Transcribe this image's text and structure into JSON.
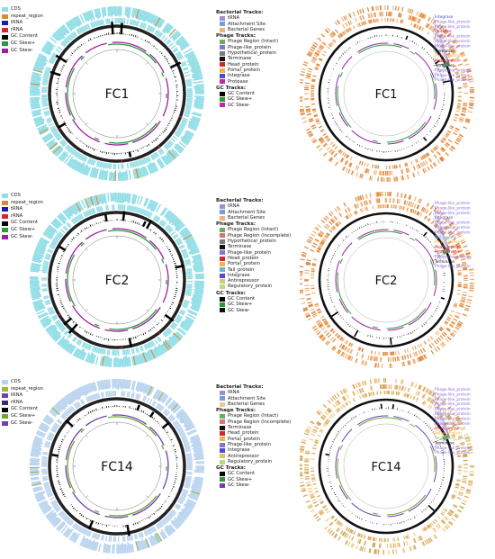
{
  "panels": [
    {
      "id": "FC1",
      "label": "FC1",
      "gc_color": "#2a9b3a",
      "skew_neg": "#9b1fa0",
      "left_legend": [
        {
          "label": "CDS",
          "color": "#8fdde6"
        },
        {
          "label": "repeat_region",
          "color": "#d98a2b"
        },
        {
          "label": "tRNA",
          "color": "#1c1cb5"
        },
        {
          "label": "rRNA",
          "color": "#d9232f"
        },
        {
          "label": "GC Content",
          "color": "#000000"
        },
        {
          "label": "GC Skew+",
          "color": "#2a9b3a"
        },
        {
          "label": "GC Skew-",
          "color": "#9b1fa0"
        }
      ],
      "mid_legend": [
        {
          "header": "Bacterial Tracks:",
          "items": [
            {
              "label": "tRNA",
              "color": "#9c8fd6"
            },
            {
              "label": "Attachment Site",
              "color": "#6fa0d6"
            },
            {
              "label": "Bacterial Genes",
              "color": "#f2b27a"
            }
          ]
        },
        {
          "header": "Phage Tracks:",
          "items": [
            {
              "label": "Phage Region (Intact)",
              "color": "#6aad5f"
            },
            {
              "label": "Phage-like_protein",
              "color": "#8c6fd6"
            },
            {
              "label": "Hypothetical_protein",
              "color": "#7a7a7a"
            },
            {
              "label": "Terminase",
              "color": "#111111"
            },
            {
              "label": "Head_protein",
              "color": "#d9232f"
            },
            {
              "label": "Portal_protein",
              "color": "#e8b84a"
            },
            {
              "label": "Integrase",
              "color": "#4a4ad6"
            },
            {
              "label": "Protease",
              "color": "#c02a9c"
            }
          ]
        },
        {
          "header": "GC Tracks:",
          "items": [
            {
              "label": "GC Content",
              "color": "#000000"
            },
            {
              "label": "GC Skew+",
              "color": "#2a9b3a"
            },
            {
              "label": "GC Skew-",
              "color": "#c02aa8"
            }
          ]
        }
      ],
      "phage_labels": [
        "Integrase",
        "Phage-like_protein",
        "Phage-like_protein",
        "Protease",
        "Phage-like_protein",
        "Phage-like_protein",
        "Phage-like_protein",
        "Terminase",
        "Portal_protein",
        "Head_protein",
        "Terminase",
        "Phage-like_protein",
        "Phage-like_protein",
        "Phage-like_protein"
      ],
      "phage_label_colors": [
        "#4a4ad6",
        "#8c6fd6",
        "#8c6fd6",
        "#c02a9c",
        "#8c6fd6",
        "#8c6fd6",
        "#8c6fd6",
        "#111111",
        "#e8b84a",
        "#d9232f",
        "#111111",
        "#8c6fd6",
        "#8c6fd6",
        "#8c6fd6"
      ]
    },
    {
      "id": "FC2",
      "label": "FC2",
      "gc_color": "#2a9b3a",
      "skew_neg": "#9b1fa0",
      "left_legend": [
        {
          "label": "CDS",
          "color": "#8fdde6"
        },
        {
          "label": "repeat_region",
          "color": "#d98a2b"
        },
        {
          "label": "tRNA",
          "color": "#1c1cb5"
        },
        {
          "label": "rRNA",
          "color": "#d9232f"
        },
        {
          "label": "GC Content",
          "color": "#000000"
        },
        {
          "label": "GC Skew+",
          "color": "#2a9b3a"
        },
        {
          "label": "GC Skew-",
          "color": "#9b1fa0"
        }
      ],
      "mid_legend": [
        {
          "header": "Bacterial Tracks:",
          "items": [
            {
              "label": "tRNA",
              "color": "#9c8fd6"
            },
            {
              "label": "Attachment Site",
              "color": "#6fa0d6"
            },
            {
              "label": "Bacterial Genes",
              "color": "#f2b27a"
            }
          ]
        },
        {
          "header": "Phage Tracks:",
          "items": [
            {
              "label": "Phage Region (Intact)",
              "color": "#6aad5f"
            },
            {
              "label": "Phage Region (Incomplete)",
              "color": "#d9757a"
            },
            {
              "label": "Hypothetical_protein",
              "color": "#7a7a7a"
            },
            {
              "label": "Terminase",
              "color": "#111111"
            },
            {
              "label": "Phage-like_protein",
              "color": "#8c6fd6"
            },
            {
              "label": "Head_protein",
              "color": "#d9232f"
            },
            {
              "label": "Portal_protein",
              "color": "#e8b84a"
            },
            {
              "label": "Tail_protein",
              "color": "#6fb0d6"
            },
            {
              "label": "Integrase",
              "color": "#4a4ad6"
            },
            {
              "label": "Antirepressor",
              "color": "#d6c86f"
            },
            {
              "label": "Regulatory_protein",
              "color": "#b8d68c"
            }
          ]
        },
        {
          "header": "GC Tracks:",
          "items": [
            {
              "label": "GC Content",
              "color": "#000000"
            },
            {
              "label": "GC Skew+",
              "color": "#2a9b3a"
            },
            {
              "label": "GC Skew-",
              "color": "#111111"
            }
          ]
        }
      ],
      "phage_labels": [
        "Phage-like_protein",
        "Phage-like_protein",
        "Phage-like_protein",
        "Integrase",
        "Phage-like_protein",
        "Phage-like_protein",
        "Phage-like_protein",
        "Tail_protein",
        "Portal_protein",
        "Head_protein",
        "Head_protein",
        "Phage-like_protein",
        "Terminase",
        "Phage-like_protein"
      ],
      "phage_label_colors": [
        "#8c6fd6",
        "#8c6fd6",
        "#8c6fd6",
        "#4a4ad6",
        "#8c6fd6",
        "#8c6fd6",
        "#8c6fd6",
        "#6fb0d6",
        "#e8b84a",
        "#d9232f",
        "#d9232f",
        "#8c6fd6",
        "#111111",
        "#8c6fd6"
      ]
    },
    {
      "id": "FC14",
      "label": "FC14",
      "gc_color": "#6aa832",
      "skew_neg": "#6f3fb5",
      "left_legend": [
        {
          "label": "CDS",
          "color": "#b8d3ef"
        },
        {
          "label": "repeat_region",
          "color": "#9ab83a"
        },
        {
          "label": "tRNA",
          "color": "#6f3fb5"
        },
        {
          "label": "rRNA",
          "color": "#3a2a6f"
        },
        {
          "label": "GC Content",
          "color": "#000000"
        },
        {
          "label": "GC Skew+",
          "color": "#6aa832"
        },
        {
          "label": "GC Skew-",
          "color": "#6f3fb5"
        }
      ],
      "mid_legend": [
        {
          "header": "Bacterial Tracks:",
          "items": [
            {
              "label": "tRNA",
              "color": "#9c8fd6"
            },
            {
              "label": "Attachment Site",
              "color": "#6fa0d6"
            },
            {
              "label": "Bacterial Genes",
              "color": "#f2c88a"
            }
          ]
        },
        {
          "header": "Phage Tracks:",
          "items": [
            {
              "label": "Phage Region (Intact)",
              "color": "#6aad5f"
            },
            {
              "label": "Phage Region (Incomplete)",
              "color": "#d9757a"
            },
            {
              "label": "Terminase",
              "color": "#111111"
            },
            {
              "label": "Head_protein",
              "color": "#d9232f"
            },
            {
              "label": "Portal_protein",
              "color": "#e8b84a"
            },
            {
              "label": "Phage-like_protein",
              "color": "#8c6fd6"
            },
            {
              "label": "Integrase",
              "color": "#4a4ad6"
            },
            {
              "label": "Antirepressor",
              "color": "#d6c86f"
            },
            {
              "label": "Regulatory_protein",
              "color": "#b8d68c"
            }
          ]
        },
        {
          "header": "GC Tracks:",
          "items": [
            {
              "label": "GC Content",
              "color": "#000000"
            },
            {
              "label": "GC Skew+",
              "color": "#2a9b3a"
            },
            {
              "label": "GC Skew-",
              "color": "#6f3fb5"
            }
          ]
        }
      ],
      "phage_labels": [
        "Phage-like_protein",
        "Phage-like_protein",
        "Phage-like_protein",
        "Phage-like_protein",
        "Phage-like_protein",
        "Phage-like_protein",
        "Phage-like_protein",
        "Phage-like_protein",
        "Head_protein",
        "Portal_protein",
        "Regulatory_protein",
        "Terminase",
        "Phage-like_protein",
        "Phage-like_protein"
      ],
      "phage_label_colors": [
        "#8c6fd6",
        "#8c6fd6",
        "#8c6fd6",
        "#8c6fd6",
        "#8c6fd6",
        "#8c6fd6",
        "#8c6fd6",
        "#8c6fd6",
        "#d9232f",
        "#e8b84a",
        "#b8d68c",
        "#111111",
        "#8c6fd6",
        "#8c6fd6"
      ]
    }
  ]
}
